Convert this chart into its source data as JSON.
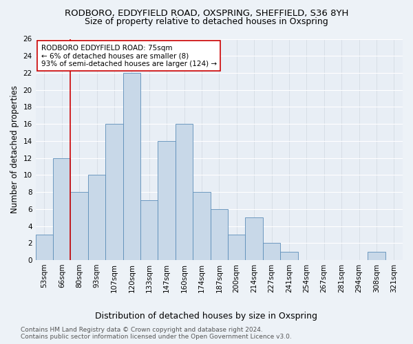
{
  "title1": "RODBORO, EDDYFIELD ROAD, OXSPRING, SHEFFIELD, S36 8YH",
  "title2": "Size of property relative to detached houses in Oxspring",
  "xlabel": "Distribution of detached houses by size in Oxspring",
  "ylabel": "Number of detached properties",
  "categories": [
    "53sqm",
    "66sqm",
    "80sqm",
    "93sqm",
    "107sqm",
    "120sqm",
    "133sqm",
    "147sqm",
    "160sqm",
    "174sqm",
    "187sqm",
    "200sqm",
    "214sqm",
    "227sqm",
    "241sqm",
    "254sqm",
    "267sqm",
    "281sqm",
    "294sqm",
    "308sqm",
    "321sqm"
  ],
  "values": [
    3,
    12,
    8,
    10,
    16,
    22,
    7,
    14,
    16,
    8,
    6,
    3,
    5,
    2,
    1,
    0,
    0,
    0,
    0,
    1,
    0
  ],
  "bar_color": "#c8d8e8",
  "bar_edge_color": "#5b8db8",
  "property_line_x": 1.5,
  "annotation_line1": "RODBORO EDDYFIELD ROAD: 75sqm",
  "annotation_line2": "← 6% of detached houses are smaller (8)",
  "annotation_line3": "93% of semi-detached houses are larger (124) →",
  "annotation_box_color": "#ffffff",
  "annotation_box_edge": "#cc0000",
  "line_color": "#cc0000",
  "ylim": [
    0,
    26
  ],
  "yticks": [
    0,
    2,
    4,
    6,
    8,
    10,
    12,
    14,
    16,
    18,
    20,
    22,
    24,
    26
  ],
  "footer1": "Contains HM Land Registry data © Crown copyright and database right 2024.",
  "footer2": "Contains public sector information licensed under the Open Government Licence v3.0.",
  "background_color": "#edf2f7",
  "plot_background_color": "#e8eef5",
  "grid_color": "#ffffff",
  "title1_fontsize": 9.5,
  "title2_fontsize": 9,
  "xlabel_fontsize": 9,
  "ylabel_fontsize": 8.5,
  "tick_fontsize": 7.5,
  "annotation_fontsize": 7.5,
  "footer_fontsize": 6.5
}
